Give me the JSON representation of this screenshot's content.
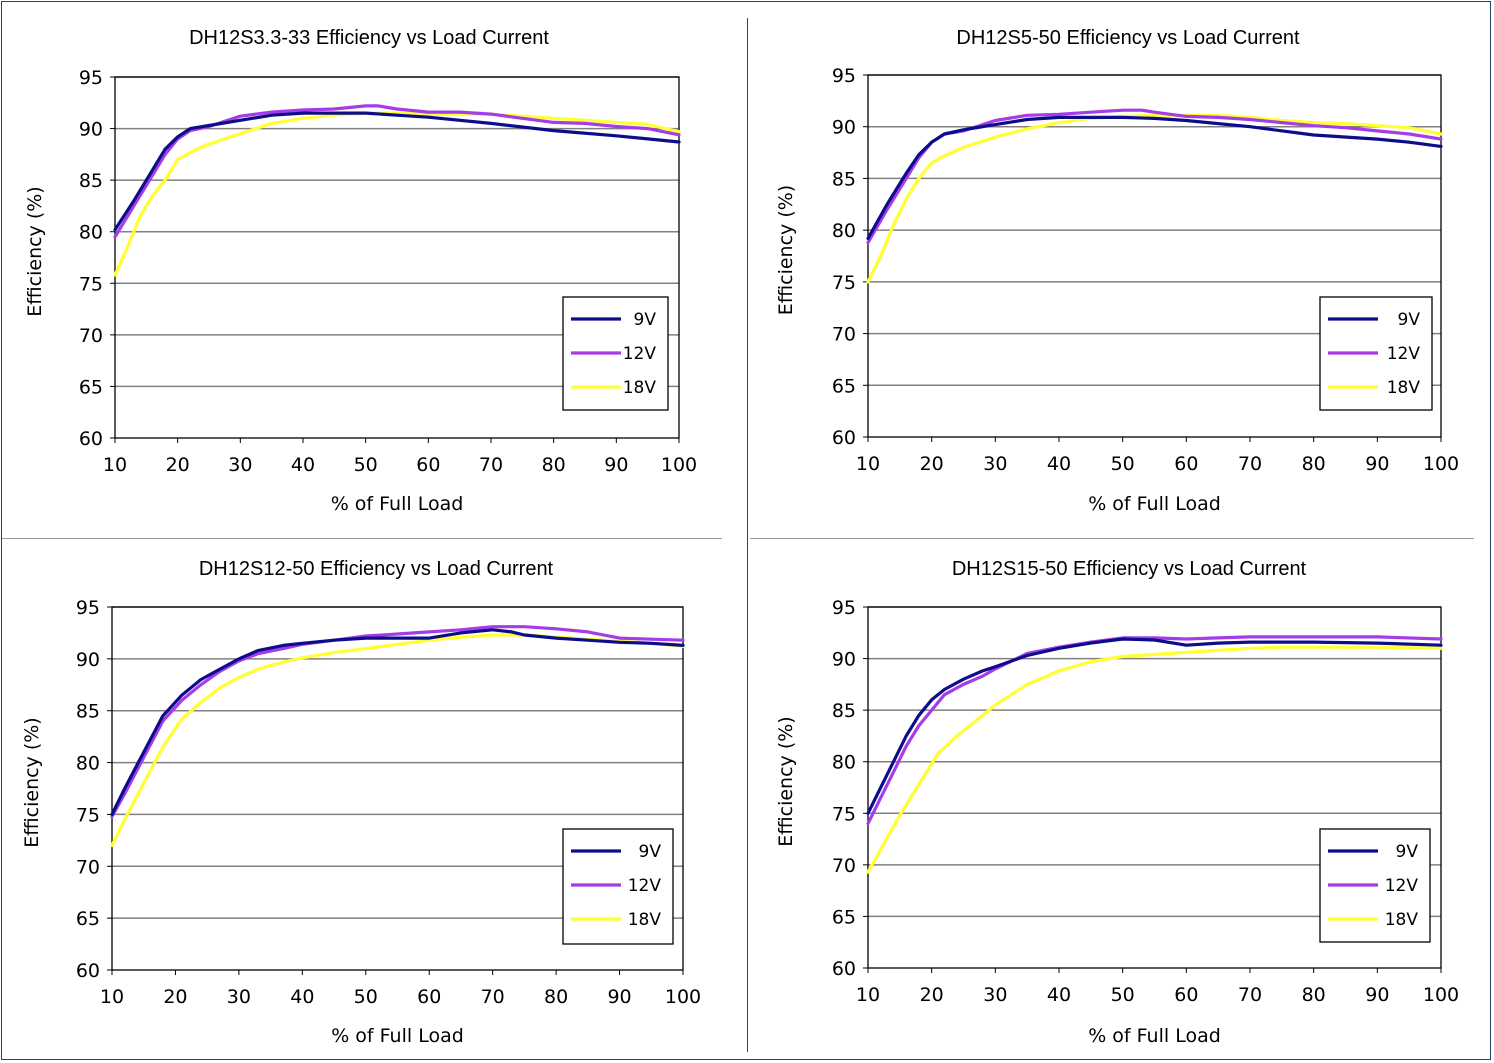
{
  "colors": {
    "9V": "#0d0d8c",
    "12V": "#a63ce8",
    "18V": "#ffff33",
    "grid": "#808080",
    "frame": "#24446a"
  },
  "chart_data": [
    {
      "type": "line",
      "title": "DH12S3.3-33 Efficiency vs Load Current",
      "xlabel": "% of Full Load",
      "ylabel": "Efficiency (%)",
      "xlim": [
        10,
        100
      ],
      "ylim": [
        60,
        95
      ],
      "xticks": [
        10,
        20,
        30,
        40,
        50,
        60,
        70,
        80,
        90,
        100
      ],
      "yticks": [
        60,
        65,
        70,
        75,
        80,
        85,
        90,
        95
      ],
      "grid": true,
      "legend": "right",
      "series": [
        {
          "name": "9V",
          "x": [
            10,
            13,
            16,
            18,
            20,
            22,
            25,
            30,
            35,
            40,
            45,
            50,
            55,
            60,
            70,
            80,
            90,
            95,
            100
          ],
          "y": [
            80.2,
            83,
            86,
            88,
            89.2,
            90,
            90.3,
            90.8,
            91.3,
            91.5,
            91.5,
            91.5,
            91.3,
            91.1,
            90.5,
            89.8,
            89.3,
            89,
            88.7
          ]
        },
        {
          "name": "12V",
          "x": [
            10,
            13,
            16,
            18,
            20,
            22,
            25,
            30,
            35,
            40,
            45,
            50,
            52,
            55,
            60,
            65,
            70,
            75,
            80,
            85,
            90,
            95,
            100
          ],
          "y": [
            79.5,
            82.5,
            85.5,
            87.5,
            89,
            89.8,
            90.2,
            91.2,
            91.6,
            91.8,
            91.9,
            92.2,
            92.2,
            91.9,
            91.6,
            91.6,
            91.4,
            91,
            90.6,
            90.5,
            90.2,
            90,
            89.4
          ]
        },
        {
          "name": "18V",
          "x": [
            10,
            12,
            14,
            16,
            18,
            20,
            23,
            25,
            30,
            35,
            40,
            45,
            50,
            55,
            60,
            65,
            70,
            75,
            80,
            85,
            90,
            95,
            100
          ],
          "y": [
            75.8,
            78.5,
            81.5,
            83.5,
            85,
            87,
            88,
            88.5,
            89.5,
            90.5,
            91,
            91.3,
            91.5,
            91.5,
            91.4,
            91.4,
            91.4,
            91.2,
            91,
            90.8,
            90.6,
            90.4,
            89.7
          ]
        }
      ]
    },
    {
      "type": "line",
      "title": "DH12S5-50 Efficiency vs Load Current",
      "xlabel": "% of Full Load",
      "ylabel": "Efficiency (%)",
      "xlim": [
        10,
        100
      ],
      "ylim": [
        60,
        95
      ],
      "xticks": [
        10,
        20,
        30,
        40,
        50,
        60,
        70,
        80,
        90,
        100
      ],
      "yticks": [
        60,
        65,
        70,
        75,
        80,
        85,
        90,
        95
      ],
      "grid": true,
      "legend": "right",
      "series": [
        {
          "name": "9V",
          "x": [
            10,
            13,
            16,
            18,
            20,
            22,
            25,
            30,
            35,
            40,
            45,
            50,
            55,
            60,
            70,
            80,
            90,
            95,
            100
          ],
          "y": [
            79.2,
            82.5,
            85.5,
            87.3,
            88.5,
            89.3,
            89.7,
            90.2,
            90.7,
            90.9,
            90.9,
            90.9,
            90.8,
            90.6,
            90,
            89.2,
            88.8,
            88.5,
            88.1
          ]
        },
        {
          "name": "12V",
          "x": [
            10,
            13,
            16,
            18,
            20,
            22,
            25,
            30,
            35,
            40,
            45,
            50,
            53,
            55,
            60,
            65,
            70,
            75,
            80,
            85,
            90,
            95,
            100
          ],
          "y": [
            78.8,
            82,
            85,
            87,
            88.5,
            89.3,
            89.6,
            90.6,
            91.1,
            91.2,
            91.4,
            91.6,
            91.6,
            91.4,
            91,
            90.9,
            90.7,
            90.4,
            90.1,
            89.9,
            89.6,
            89.3,
            88.8
          ]
        },
        {
          "name": "18V",
          "x": [
            10,
            12,
            14,
            16,
            18,
            20,
            22,
            25,
            30,
            35,
            40,
            45,
            50,
            55,
            60,
            65,
            70,
            75,
            80,
            85,
            90,
            95,
            100
          ],
          "y": [
            75,
            77.5,
            80.5,
            83,
            85,
            86.5,
            87.2,
            88,
            89,
            89.8,
            90.4,
            90.8,
            91,
            91.1,
            91.1,
            91.1,
            90.9,
            90.6,
            90.4,
            90.3,
            90.1,
            89.9,
            89.3
          ]
        }
      ]
    },
    {
      "type": "line",
      "title": "DH12S12-50 Efficiency vs Load Current",
      "xlabel": "% of Full Load",
      "ylabel": "Efficiency (%)",
      "xlim": [
        10,
        100
      ],
      "ylim": [
        60,
        95
      ],
      "xticks": [
        10,
        20,
        30,
        40,
        50,
        60,
        70,
        80,
        90,
        100
      ],
      "yticks": [
        60,
        65,
        70,
        75,
        80,
        85,
        90,
        95
      ],
      "grid": true,
      "legend": "right",
      "series": [
        {
          "name": "9V",
          "x": [
            10,
            12,
            15,
            18,
            21,
            24,
            27,
            30,
            33,
            37,
            40,
            45,
            50,
            55,
            60,
            65,
            70,
            73,
            75,
            80,
            85,
            90,
            95,
            100
          ],
          "y": [
            75,
            77.5,
            81,
            84.5,
            86.5,
            88,
            89,
            90,
            90.8,
            91.3,
            91.5,
            91.8,
            92,
            92,
            92,
            92.5,
            92.8,
            92.6,
            92.3,
            92,
            91.8,
            91.6,
            91.5,
            91.3
          ]
        },
        {
          "name": "12V",
          "x": [
            10,
            12,
            15,
            18,
            21,
            24,
            27,
            30,
            33,
            37,
            40,
            45,
            50,
            55,
            60,
            65,
            70,
            75,
            80,
            85,
            90,
            95,
            100
          ],
          "y": [
            74.8,
            77,
            80.5,
            84,
            86,
            87.5,
            88.8,
            89.8,
            90.5,
            91,
            91.4,
            91.8,
            92.2,
            92.4,
            92.6,
            92.8,
            93.1,
            93.1,
            92.9,
            92.6,
            92,
            91.9,
            91.8
          ]
        },
        {
          "name": "18V",
          "x": [
            10,
            12,
            15,
            18,
            21,
            24,
            27,
            30,
            33,
            37,
            40,
            45,
            50,
            55,
            60,
            65,
            70,
            75,
            80,
            85,
            90,
            95,
            100
          ],
          "y": [
            72,
            74.5,
            78,
            81.5,
            84.2,
            85.8,
            87.2,
            88.2,
            89,
            89.7,
            90.1,
            90.6,
            91,
            91.4,
            91.8,
            92.1,
            92.3,
            92.3,
            92.1,
            91.9,
            91.7,
            91.5,
            91.2
          ]
        }
      ]
    },
    {
      "type": "line",
      "title": "DH12S15-50 Efficiency vs Load Current",
      "xlabel": "% of Full Load",
      "ylabel": "Efficiency (%)",
      "xlim": [
        10,
        100
      ],
      "ylim": [
        60,
        95
      ],
      "xticks": [
        10,
        20,
        30,
        40,
        50,
        60,
        70,
        80,
        90,
        100
      ],
      "yticks": [
        60,
        65,
        70,
        75,
        80,
        85,
        90,
        95
      ],
      "grid": true,
      "legend": "right",
      "series": [
        {
          "name": "9V",
          "x": [
            10,
            12,
            14,
            16,
            18,
            20,
            22,
            25,
            28,
            30,
            35,
            40,
            45,
            50,
            55,
            60,
            65,
            70,
            80,
            90,
            100
          ],
          "y": [
            75,
            77.5,
            80,
            82.5,
            84.5,
            86,
            87,
            88,
            88.8,
            89.2,
            90.3,
            91,
            91.5,
            91.9,
            91.8,
            91.3,
            91.5,
            91.6,
            91.6,
            91.5,
            91.3
          ]
        },
        {
          "name": "12V",
          "x": [
            10,
            12,
            14,
            16,
            18,
            20,
            22,
            25,
            28,
            30,
            35,
            40,
            45,
            50,
            55,
            60,
            65,
            70,
            80,
            90,
            100
          ],
          "y": [
            74,
            76.5,
            79,
            81.5,
            83.5,
            85,
            86.5,
            87.5,
            88.3,
            89,
            90.5,
            91.1,
            91.6,
            92,
            92,
            91.9,
            92,
            92.1,
            92.1,
            92.1,
            91.9
          ]
        },
        {
          "name": "18V",
          "x": [
            10,
            12,
            15,
            18,
            21,
            24,
            27,
            30,
            35,
            40,
            45,
            50,
            55,
            60,
            65,
            70,
            75,
            80,
            90,
            100
          ],
          "y": [
            69.3,
            71.5,
            74.8,
            77.8,
            80.8,
            82.5,
            84,
            85.5,
            87.5,
            88.8,
            89.7,
            90.2,
            90.4,
            90.6,
            90.8,
            91,
            91.1,
            91.1,
            91.1,
            91
          ]
        }
      ]
    }
  ]
}
